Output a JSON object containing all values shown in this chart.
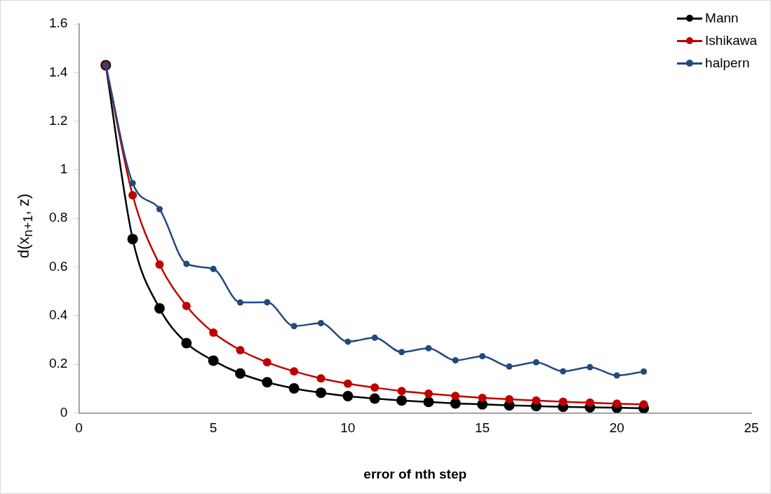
{
  "chart_data": {
    "type": "line",
    "xlabel": "error of nth step",
    "ylabel": "d(x$_{n+1}$, z)",
    "x": [
      1,
      2,
      3,
      4,
      5,
      6,
      7,
      8,
      9,
      10,
      11,
      12,
      13,
      14,
      15,
      16,
      17,
      18,
      19,
      20,
      21
    ],
    "series": [
      {
        "name": "Mann",
        "color": "#000000",
        "values": [
          1.43,
          0.715,
          0.43,
          0.287,
          0.215,
          0.162,
          0.126,
          0.101,
          0.083,
          0.069,
          0.059,
          0.051,
          0.045,
          0.039,
          0.035,
          0.031,
          0.028,
          0.025,
          0.023,
          0.021,
          0.019
        ]
      },
      {
        "name": "Ishikawa",
        "color": "#c00000",
        "values": [
          1.43,
          0.895,
          0.61,
          0.44,
          0.33,
          0.258,
          0.208,
          0.171,
          0.142,
          0.12,
          0.104,
          0.09,
          0.079,
          0.07,
          0.062,
          0.056,
          0.051,
          0.046,
          0.042,
          0.038,
          0.035
        ]
      },
      {
        "name": "halpern",
        "color": "#23497e",
        "values": [
          1.43,
          0.945,
          0.838,
          0.613,
          0.592,
          0.454,
          0.455,
          0.357,
          0.369,
          0.293,
          0.309,
          0.25,
          0.266,
          0.216,
          0.233,
          0.191,
          0.208,
          0.171,
          0.188,
          0.154,
          0.17
        ]
      }
    ],
    "xlim": [
      0,
      25
    ],
    "xticks": [
      0,
      5,
      10,
      15,
      20,
      25
    ],
    "ylim": [
      0,
      1.6
    ],
    "yticks": [
      0,
      0.2,
      0.4,
      0.6,
      0.8,
      1,
      1.2,
      1.4,
      1.6
    ],
    "grid": false,
    "legend": "top right",
    "marker": "circle",
    "line_style": "solid"
  }
}
